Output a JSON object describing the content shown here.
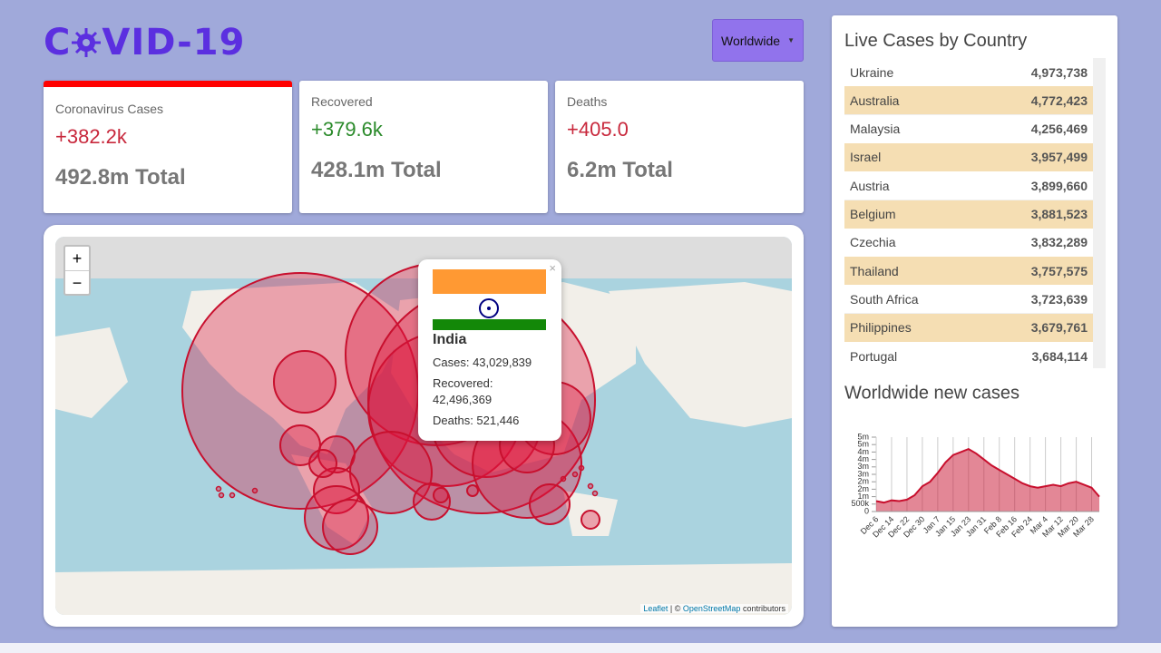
{
  "header": {
    "logo_start": "C",
    "logo_end": "VID-19",
    "dropdown": "Worldwide"
  },
  "stats": [
    {
      "title": "Coronavirus Cases",
      "today": "+382.2k",
      "total": "492.8m Total"
    },
    {
      "title": "Recovered",
      "today": "+379.6k",
      "total": "428.1m Total"
    },
    {
      "title": "Deaths",
      "today": "+405.0",
      "total": "6.2m Total"
    }
  ],
  "map": {
    "zoom_in": "+",
    "zoom_out": "−",
    "popup": {
      "close": "×",
      "country": "India",
      "cases": "Cases: 43,029,839",
      "recovered_label": "Recovered:",
      "recovered_value": "42,496,369",
      "deaths": "Deaths: 521,446"
    },
    "attribution": {
      "leaflet": "Leaflet",
      "separator": "| ©",
      "osm": "OpenStreetMap",
      "suffix": "contributors"
    }
  },
  "table": {
    "title": "Live Cases by Country",
    "rows": [
      [
        "Ukraine",
        "4,973,738"
      ],
      [
        "Australia",
        "4,772,423"
      ],
      [
        "Malaysia",
        "4,256,469"
      ],
      [
        "Israel",
        "3,957,499"
      ],
      [
        "Austria",
        "3,899,660"
      ],
      [
        "Belgium",
        "3,881,523"
      ],
      [
        "Czechia",
        "3,832,289"
      ],
      [
        "Thailand",
        "3,757,575"
      ],
      [
        "South Africa",
        "3,723,639"
      ],
      [
        "Philippines",
        "3,679,761"
      ],
      [
        "Portugal",
        "3,684,114"
      ]
    ]
  },
  "chart_data": {
    "type": "area",
    "title": "Worldwide new cases",
    "categories": [
      "Dec 6",
      null,
      "Dec 14",
      null,
      "Dec 22",
      null,
      "Dec 30",
      null,
      "Jan 7",
      null,
      "Jan 15",
      null,
      "Jan 23",
      null,
      "Jan 31",
      null,
      "Feb 8",
      null,
      "Feb 16",
      null,
      "Feb 24",
      null,
      "Mar 4",
      null,
      "Mar 12",
      null,
      "Mar 20",
      null,
      "Mar 28",
      null
    ],
    "values": [
      700000,
      600000,
      750000,
      700000,
      800000,
      1100000,
      1700000,
      2000000,
      2600000,
      3300000,
      3800000,
      4000000,
      4200000,
      3900000,
      3500000,
      3100000,
      2800000,
      2500000,
      2200000,
      1900000,
      1700000,
      1600000,
      1700000,
      1800000,
      1700000,
      1900000,
      2000000,
      1800000,
      1600000,
      1000000
    ],
    "color": "#c8102e",
    "ylim": [
      0,
      5000000
    ],
    "yticks": [
      0,
      {
        "value": 500000,
        "label": "500k"
      },
      {
        "value": 1000000,
        "label": "1m"
      },
      {
        "value": 1500000,
        "label": "2m"
      },
      {
        "value": 2000000,
        "label": "2m"
      },
      {
        "value": 2500000,
        "label": "3m"
      },
      {
        "value": 3000000,
        "label": "3m"
      },
      {
        "value": 3500000,
        "label": "4m"
      },
      {
        "value": 4000000,
        "label": "4m"
      },
      {
        "value": 4500000,
        "label": "5m"
      },
      {
        "value": 5000000,
        "label": "5m"
      }
    ],
    "grid": true
  }
}
